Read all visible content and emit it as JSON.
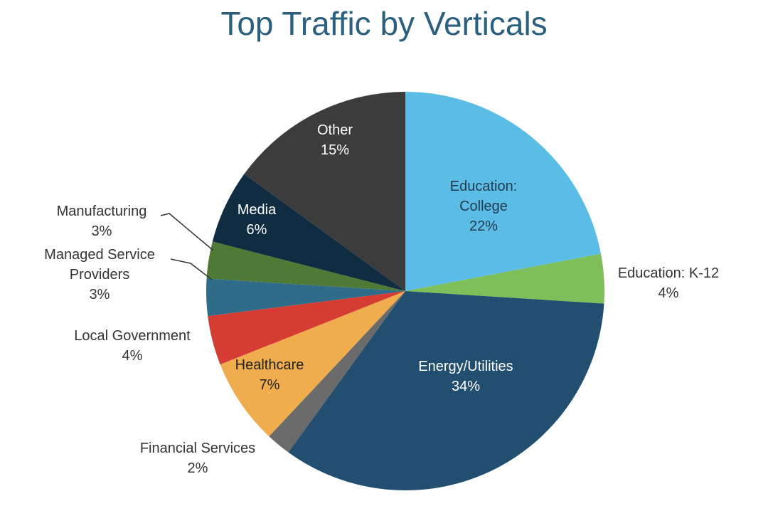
{
  "chart_data": {
    "type": "pie",
    "title": "Top Traffic by Verticals",
    "start_angle_deg": 0,
    "direction": "clockwise",
    "slices": [
      {
        "label_lines": [
          "Education:",
          "College"
        ],
        "value": 22,
        "pct_text": "22%",
        "color": "#5bbce6",
        "label_color": "#1f3b4d",
        "label_inside": true
      },
      {
        "label_lines": [
          "Education: K-12"
        ],
        "value": 4,
        "pct_text": "4%",
        "color": "#7fbf5a",
        "label_color": "#333333",
        "label_inside": false
      },
      {
        "label_lines": [
          "Energy/Utilities"
        ],
        "value": 34,
        "pct_text": "34%",
        "color": "#224f6f",
        "label_color": "#ffffff",
        "label_inside": true
      },
      {
        "label_lines": [
          "Financial Services"
        ],
        "value": 2,
        "pct_text": "2%",
        "color": "#6b6b6b",
        "label_color": "#333333",
        "label_inside": false
      },
      {
        "label_lines": [
          "Healthcare"
        ],
        "value": 7,
        "pct_text": "7%",
        "color": "#f0ad4e",
        "label_color": "#1f1f1f",
        "label_inside": true
      },
      {
        "label_lines": [
          "Local Government"
        ],
        "value": 4,
        "pct_text": "4%",
        "color": "#d53c32",
        "label_color": "#333333",
        "label_inside": false
      },
      {
        "label_lines": [
          "Managed Service",
          "Providers"
        ],
        "value": 3,
        "pct_text": "3%",
        "color": "#2f6c8a",
        "label_color": "#333333",
        "label_inside": false
      },
      {
        "label_lines": [
          "Manufacturing"
        ],
        "value": 3,
        "pct_text": "3%",
        "color": "#4f7a36",
        "label_color": "#333333",
        "label_inside": false
      },
      {
        "label_lines": [
          "Media"
        ],
        "value": 6,
        "pct_text": "6%",
        "color": "#0f2c40",
        "label_color": "#ffffff",
        "label_inside": true
      },
      {
        "label_lines": [
          "Other"
        ],
        "value": 15,
        "pct_text": "15%",
        "color": "#3c3c3c",
        "label_color": "#ffffff",
        "label_inside": true
      }
    ]
  }
}
